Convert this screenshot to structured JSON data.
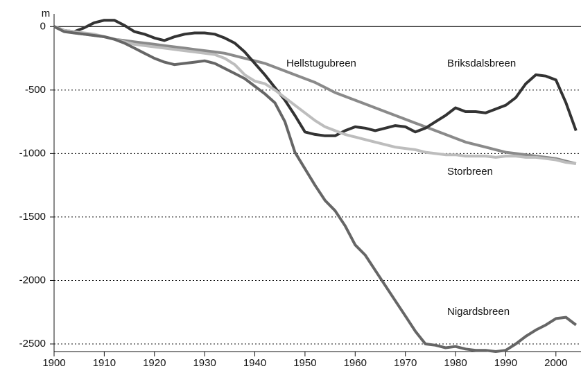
{
  "chart_data": {
    "type": "line",
    "y_label": "m",
    "x": [
      1900,
      1902,
      1904,
      1906,
      1908,
      1910,
      1912,
      1914,
      1916,
      1918,
      1920,
      1922,
      1924,
      1926,
      1928,
      1930,
      1932,
      1934,
      1936,
      1938,
      1940,
      1942,
      1944,
      1946,
      1948,
      1950,
      1952,
      1954,
      1956,
      1958,
      1960,
      1962,
      1964,
      1966,
      1968,
      1970,
      1972,
      1974,
      1976,
      1978,
      1980,
      1982,
      1984,
      1986,
      1988,
      1990,
      1992,
      1994,
      1996,
      1998,
      2000,
      2002,
      2004
    ],
    "series": [
      {
        "name": "Hellstugubreen",
        "color": "#8a8a8a",
        "values": [
          0,
          -30,
          -50,
          -60,
          -70,
          -80,
          -100,
          -110,
          -120,
          -130,
          -140,
          -150,
          -160,
          -170,
          -180,
          -190,
          -200,
          -210,
          -230,
          -250,
          -270,
          -290,
          -320,
          -350,
          -380,
          -410,
          -440,
          -480,
          -520,
          -550,
          -580,
          -610,
          -640,
          -670,
          -700,
          -730,
          -760,
          -790,
          -820,
          -850,
          -880,
          -910,
          -930,
          -950,
          -970,
          -990,
          -1000,
          -1010,
          -1020,
          -1030,
          -1040,
          -1060,
          -1080
        ]
      },
      {
        "name": "Briksdalsbreen",
        "color": "#333333",
        "values": [
          0,
          -30,
          -40,
          -10,
          30,
          50,
          50,
          10,
          -40,
          -60,
          -90,
          -110,
          -80,
          -60,
          -50,
          -50,
          -60,
          -90,
          -130,
          -200,
          -290,
          -380,
          -480,
          -580,
          -700,
          -830,
          -850,
          -860,
          -860,
          -820,
          -790,
          -800,
          -820,
          -800,
          -780,
          -790,
          -830,
          -800,
          -750,
          -700,
          -640,
          -670,
          -670,
          -680,
          -650,
          -620,
          -560,
          -450,
          -380,
          -390,
          -420,
          -600,
          -820
        ]
      },
      {
        "name": "Storbreen",
        "color": "#bdbdbd",
        "values": [
          0,
          -30,
          -40,
          -50,
          -60,
          -80,
          -100,
          -120,
          -140,
          -150,
          -160,
          -170,
          -180,
          -190,
          -200,
          -210,
          -220,
          -250,
          -300,
          -380,
          -430,
          -450,
          -500,
          -560,
          -620,
          -680,
          -740,
          -790,
          -820,
          -850,
          -870,
          -890,
          -910,
          -930,
          -950,
          -960,
          -970,
          -990,
          -1000,
          -1010,
          -1010,
          -1020,
          -1020,
          -1020,
          -1030,
          -1020,
          -1020,
          -1030,
          -1030,
          -1040,
          -1050,
          -1070,
          -1080
        ]
      },
      {
        "name": "Nigardsbreen",
        "color": "#666666",
        "values": [
          0,
          -40,
          -50,
          -60,
          -70,
          -80,
          -100,
          -130,
          -170,
          -210,
          -250,
          -280,
          -300,
          -290,
          -280,
          -270,
          -290,
          -330,
          -370,
          -410,
          -470,
          -530,
          -600,
          -750,
          -990,
          -1120,
          -1250,
          -1370,
          -1450,
          -1570,
          -1720,
          -1800,
          -1920,
          -2040,
          -2160,
          -2280,
          -2400,
          -2500,
          -2510,
          -2530,
          -2520,
          -2540,
          -2550,
          -2550,
          -2560,
          -2550,
          -2500,
          -2440,
          -2390,
          -2350,
          -2300,
          -2290,
          -2350
        ]
      }
    ],
    "xlim": [
      1900,
      2005
    ],
    "ylim": [
      -2560,
      100
    ],
    "xticks": [
      1900,
      1910,
      1920,
      1930,
      1940,
      1950,
      1960,
      1970,
      1980,
      1990,
      2000
    ],
    "yticks": [
      0,
      -500,
      -1000,
      -1500,
      -2000,
      -2500
    ],
    "grid": true
  }
}
